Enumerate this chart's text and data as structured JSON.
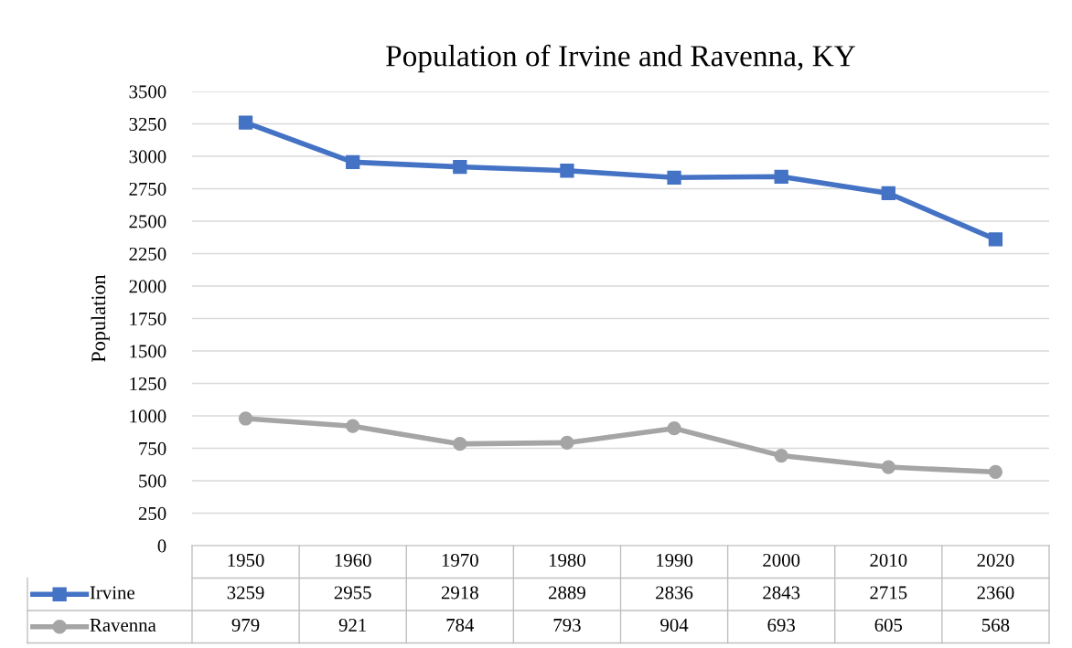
{
  "chart_data": {
    "type": "line",
    "title": "Population of Irvine and Ravenna, KY",
    "ylabel": "Population",
    "categories": [
      "1950",
      "1960",
      "1970",
      "1980",
      "1990",
      "2000",
      "2010",
      "2020"
    ],
    "series": [
      {
        "name": "Irvine",
        "color": "#4472c4",
        "marker": "square",
        "values": [
          3259,
          2955,
          2918,
          2889,
          2836,
          2843,
          2715,
          2360
        ]
      },
      {
        "name": "Ravenna",
        "color": "#a5a5a5",
        "marker": "circle",
        "values": [
          979,
          921,
          784,
          793,
          904,
          693,
          605,
          568
        ]
      }
    ],
    "ylim": [
      0,
      3500
    ],
    "yticks": [
      0,
      250,
      500,
      750,
      1000,
      1250,
      1500,
      1750,
      2000,
      2250,
      2500,
      2750,
      3000,
      3250,
      3500
    ],
    "grid": "y",
    "data_labels": true,
    "legend": "bottom",
    "line_style": "solid"
  }
}
